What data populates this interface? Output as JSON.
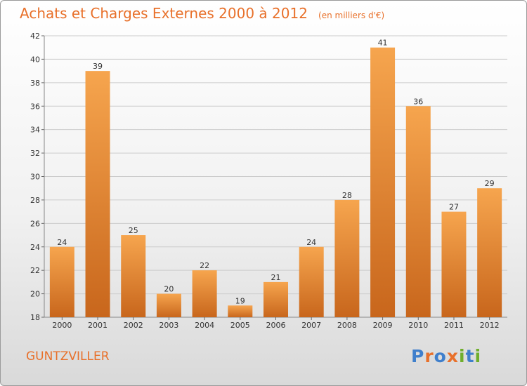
{
  "title": "Achats et Charges Externes 2000 à 2012",
  "unit": "(en milliers d'€)",
  "commune": "GUNTZVILLER",
  "logo": {
    "text": "Proxiti",
    "letters": [
      {
        "ch": "P",
        "color": "#3f7fcc"
      },
      {
        "ch": "r",
        "color": "#e8702a"
      },
      {
        "ch": "o",
        "color": "#3f7fcc"
      },
      {
        "ch": "x",
        "color": "#e8702a"
      },
      {
        "ch": "i",
        "color": "#6fae2c"
      },
      {
        "ch": "t",
        "color": "#3f7fcc"
      },
      {
        "ch": "i",
        "color": "#6fae2c"
      }
    ]
  },
  "colors": {
    "title": "#e8702a",
    "bar_light": "#f6a54e",
    "bar_dark": "#c8661c",
    "grid": "#cccccc"
  },
  "chart_data": {
    "type": "bar",
    "title": "Achats et Charges Externes 2000 à 2012",
    "subtitle": "(en milliers d'€)",
    "xlabel": "",
    "ylabel": "",
    "categories": [
      "2000",
      "2001",
      "2002",
      "2003",
      "2004",
      "2005",
      "2006",
      "2007",
      "2008",
      "2009",
      "2010",
      "2011",
      "2012"
    ],
    "values": [
      24,
      39,
      25,
      20,
      22,
      19,
      21,
      24,
      28,
      41,
      36,
      27,
      29
    ],
    "ylim": [
      18,
      42
    ],
    "yticks": [
      18,
      20,
      22,
      24,
      26,
      28,
      30,
      32,
      34,
      36,
      38,
      40,
      42
    ],
    "grid": true,
    "data_labels": true
  }
}
